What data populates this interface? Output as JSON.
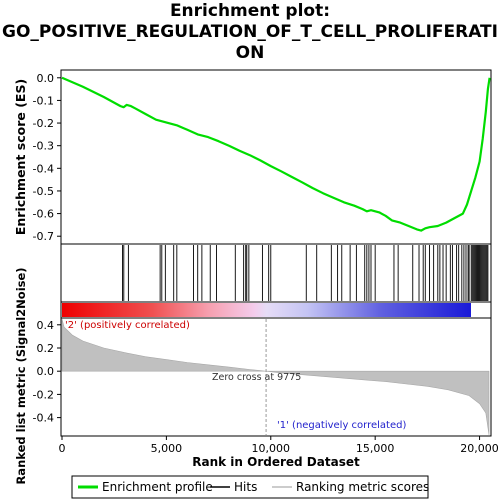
{
  "title_line1": "Enrichment plot:",
  "title_line2": "GO_POSITIVE_REGULATION_OF_T_CELL_PROLIFERATI",
  "title_line3": "ON",
  "chart_data": {
    "type": "line",
    "title": "Enrichment plot: GO_POSITIVE_REGULATION_OF_T_CELL_PROLIFERATION",
    "xlabel": "Rank in Ordered Dataset",
    "x_range": [
      0,
      20500
    ],
    "x_ticks": [
      "0",
      "5,000",
      "10,000",
      "15,000",
      "20,000"
    ],
    "x_tick_values": [
      0,
      5000,
      10000,
      15000,
      20000
    ],
    "top_panel": {
      "ylabel": "Enrichment score (ES)",
      "ylim": [
        -0.73,
        0.03
      ],
      "y_ticks": [
        "0.0",
        "-0.1",
        "-0.2",
        "-0.3",
        "-0.4",
        "-0.5",
        "-0.6",
        "-0.7"
      ],
      "y_tick_values": [
        0,
        -0.1,
        -0.2,
        -0.3,
        -0.4,
        -0.5,
        -0.6,
        -0.7
      ],
      "series_name": "Enrichment profile",
      "series_color": "#00dd00",
      "points": [
        [
          0,
          0.0
        ],
        [
          1000,
          -0.04
        ],
        [
          2000,
          -0.085
        ],
        [
          2800,
          -0.125
        ],
        [
          2950,
          -0.13
        ],
        [
          3100,
          -0.12
        ],
        [
          3300,
          -0.125
        ],
        [
          3500,
          -0.135
        ],
        [
          4000,
          -0.16
        ],
        [
          4500,
          -0.185
        ],
        [
          4900,
          -0.195
        ],
        [
          5500,
          -0.21
        ],
        [
          6000,
          -0.23
        ],
        [
          6500,
          -0.25
        ],
        [
          7000,
          -0.262
        ],
        [
          7500,
          -0.28
        ],
        [
          8000,
          -0.3
        ],
        [
          8500,
          -0.322
        ],
        [
          9000,
          -0.342
        ],
        [
          9500,
          -0.365
        ],
        [
          10000,
          -0.39
        ],
        [
          10500,
          -0.413
        ],
        [
          11000,
          -0.438
        ],
        [
          11500,
          -0.462
        ],
        [
          12000,
          -0.487
        ],
        [
          12500,
          -0.51
        ],
        [
          13000,
          -0.53
        ],
        [
          13500,
          -0.55
        ],
        [
          14000,
          -0.565
        ],
        [
          14400,
          -0.58
        ],
        [
          14600,
          -0.59
        ],
        [
          14800,
          -0.585
        ],
        [
          15200,
          -0.595
        ],
        [
          15500,
          -0.61
        ],
        [
          15800,
          -0.63
        ],
        [
          16200,
          -0.64
        ],
        [
          16600,
          -0.655
        ],
        [
          17000,
          -0.67
        ],
        [
          17200,
          -0.675
        ],
        [
          17400,
          -0.665
        ],
        [
          17600,
          -0.66
        ],
        [
          18000,
          -0.655
        ],
        [
          18400,
          -0.64
        ],
        [
          18800,
          -0.62
        ],
        [
          19200,
          -0.6
        ],
        [
          19400,
          -0.56
        ],
        [
          19600,
          -0.5
        ],
        [
          19800,
          -0.44
        ],
        [
          20000,
          -0.37
        ],
        [
          20150,
          -0.27
        ],
        [
          20300,
          -0.15
        ],
        [
          20400,
          -0.05
        ],
        [
          20480,
          0.0
        ]
      ]
    },
    "hits": [
      2900,
      2960,
      3180,
      4700,
      4780,
      4950,
      5350,
      5500,
      6300,
      6500,
      6700,
      7100,
      7400,
      8300,
      8700,
      8800,
      8850,
      8950,
      9600,
      9900,
      10000,
      11700,
      12200,
      12900,
      13200,
      13400,
      13800,
      14100,
      14500,
      14600,
      14700,
      14800,
      15000,
      15900,
      16100,
      16800,
      17100,
      17300,
      17400,
      17600,
      17800,
      18000,
      18100,
      18250,
      18400,
      18600,
      18700,
      18900,
      19000,
      19150,
      19250,
      19350,
      19450,
      19500,
      19600,
      19650,
      19700,
      19750,
      19800,
      19850,
      19900,
      19950,
      20000,
      20050,
      20100,
      20150,
      20200,
      20250,
      20300,
      20350,
      20400
    ],
    "bottom_panel": {
      "ylabel": "Ranked list metric (Signal2Noise)",
      "ylim": [
        -0.55,
        0.45
      ],
      "y_ticks": [
        "0.4",
        "0.2",
        "0.0",
        "-0.2",
        "-0.4"
      ],
      "y_tick_values": [
        0.4,
        0.2,
        0.0,
        -0.2,
        -0.4
      ],
      "series_name": "Ranking metric scores",
      "metric_curve": [
        [
          0,
          0.45
        ],
        [
          100,
          0.38
        ],
        [
          500,
          0.31
        ],
        [
          1000,
          0.26
        ],
        [
          2000,
          0.2
        ],
        [
          3000,
          0.16
        ],
        [
          4000,
          0.125
        ],
        [
          5000,
          0.1
        ],
        [
          6000,
          0.075
        ],
        [
          7000,
          0.055
        ],
        [
          8000,
          0.035
        ],
        [
          9000,
          0.015
        ],
        [
          9775,
          0.0
        ],
        [
          10500,
          -0.015
        ],
        [
          11500,
          -0.03
        ],
        [
          12500,
          -0.045
        ],
        [
          13500,
          -0.06
        ],
        [
          14500,
          -0.075
        ],
        [
          15500,
          -0.09
        ],
        [
          16500,
          -0.11
        ],
        [
          17500,
          -0.13
        ],
        [
          18500,
          -0.16
        ],
        [
          19500,
          -0.21
        ],
        [
          20000,
          -0.28
        ],
        [
          20300,
          -0.36
        ],
        [
          20450,
          -0.55
        ]
      ],
      "zero_cross_label": "Zero cross at 9775",
      "zero_cross": 9775,
      "pos_label": "'2' (positively correlated)",
      "neg_label": "'1' (negatively correlated)"
    },
    "legend": {
      "position": "bottom",
      "items": [
        {
          "label": "Enrichment profile",
          "color": "#00dd00"
        },
        {
          "label": "Hits",
          "color": "#000000"
        },
        {
          "label": "Ranking metric scores",
          "color": "#bbbbbb"
        }
      ]
    }
  }
}
